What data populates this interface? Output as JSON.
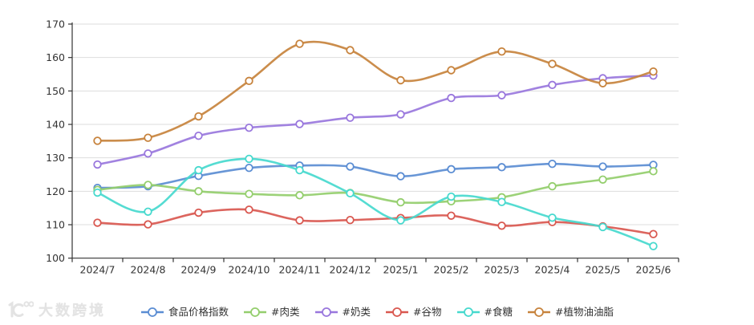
{
  "chart_data": {
    "type": "line",
    "title": "",
    "xlabel": "",
    "ylabel": "",
    "ylim": [
      100,
      170
    ],
    "ytick_step": 10,
    "grid": true,
    "legend_position": "bottom",
    "marker": "open-circle",
    "categories": [
      "2024/7",
      "2024/8",
      "2024/9",
      "2024/10",
      "2024/11",
      "2024/12",
      "2025/1",
      "2025/2",
      "2025/3",
      "2025/4",
      "2025/5",
      "2025/6"
    ],
    "series": [
      {
        "name": "食品价格指数",
        "color": "#5B8DD3",
        "values": [
          121.0,
          121.5,
          124.6,
          127.0,
          127.7,
          127.4,
          124.5,
          126.6,
          127.2,
          128.2,
          127.4,
          127.9
        ]
      },
      {
        "name": "#肉类",
        "color": "#94CE6D",
        "values": [
          120.4,
          121.9,
          120.0,
          119.2,
          118.8,
          119.5,
          116.7,
          117.0,
          118.2,
          121.5,
          123.5,
          126.0
        ]
      },
      {
        "name": "#奶类",
        "color": "#9977DD",
        "values": [
          128.0,
          131.3,
          136.6,
          139.0,
          140.1,
          142.0,
          143.0,
          147.9,
          148.7,
          151.8,
          153.8,
          154.6
        ]
      },
      {
        "name": "#谷物",
        "color": "#D95850",
        "values": [
          110.6,
          110.1,
          113.6,
          114.5,
          111.3,
          111.4,
          112.0,
          112.7,
          109.7,
          110.8,
          109.5,
          107.2
        ]
      },
      {
        "name": "#食糖",
        "color": "#47D9CE",
        "values": [
          119.6,
          113.9,
          126.3,
          129.7,
          126.3,
          119.4,
          111.3,
          118.4,
          116.8,
          112.1,
          109.3,
          103.6
        ]
      },
      {
        "name": "#植物油油脂",
        "color": "#C7833D",
        "values": [
          135.1,
          136.0,
          142.4,
          153.0,
          164.1,
          162.2,
          153.2,
          156.2,
          161.8,
          158.1,
          152.3,
          155.8
        ]
      }
    ],
    "axis_color": "#333333",
    "gridline_color": "#dddddd",
    "label_color": "#333333"
  },
  "watermark": {
    "text": "大数跨境"
  }
}
